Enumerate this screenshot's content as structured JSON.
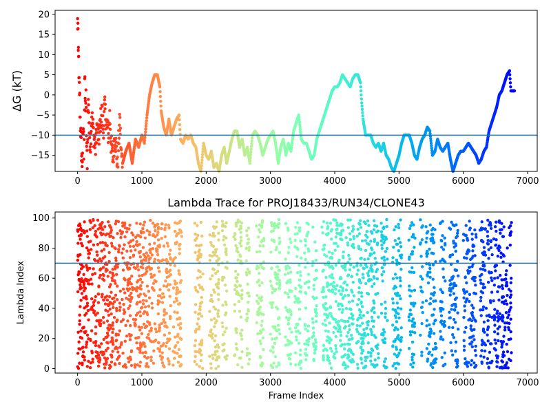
{
  "chart_data": [
    {
      "type": "scatter",
      "title": "",
      "xlabel": "",
      "ylabel": "ΔG (kT)",
      "xlim": [
        -350,
        7150
      ],
      "ylim": [
        -19,
        21
      ],
      "xticks": [
        0,
        1000,
        2000,
        3000,
        4000,
        5000,
        6000,
        7000
      ],
      "yticks": [
        -15,
        -10,
        -5,
        0,
        5,
        10,
        15,
        20
      ],
      "hline": -10,
      "hline_color": "#1f77b4",
      "colormap": "rainbow",
      "color_encoding": "frame index (early frames red, late frames violet)",
      "trace": [
        [
          0,
          18
        ],
        [
          5,
          17
        ],
        [
          10,
          10
        ],
        [
          15,
          11.5
        ],
        [
          20,
          3
        ],
        [
          30,
          1
        ],
        [
          40,
          -6
        ],
        [
          50,
          -10
        ],
        [
          60,
          -14
        ],
        [
          70,
          -17
        ],
        [
          80,
          -12
        ],
        [
          90,
          -8
        ],
        [
          100,
          -17
        ],
        [
          110,
          4
        ],
        [
          120,
          -3
        ],
        [
          130,
          -1
        ],
        [
          140,
          -13
        ],
        [
          150,
          -16
        ],
        [
          160,
          -5
        ],
        [
          170,
          -1
        ],
        [
          180,
          -9
        ],
        [
          200,
          -12
        ],
        [
          220,
          -5
        ],
        [
          250,
          -10
        ],
        [
          280,
          -13
        ],
        [
          300,
          -8
        ],
        [
          330,
          -11
        ],
        [
          360,
          -6
        ],
        [
          380,
          -4
        ],
        [
          400,
          -9
        ],
        [
          420,
          -3
        ],
        [
          450,
          -7
        ],
        [
          480,
          -10
        ],
        [
          500,
          -5
        ],
        [
          520,
          -12
        ],
        [
          550,
          -16
        ],
        [
          580,
          -10
        ],
        [
          600,
          -13
        ],
        [
          620,
          -18
        ],
        [
          650,
          -8
        ],
        [
          660,
          -7
        ],
        [
          680,
          -15
        ],
        [
          700,
          -17
        ],
        [
          750,
          -14
        ],
        [
          800,
          -12
        ],
        [
          850,
          -17
        ],
        [
          900,
          -11
        ],
        [
          950,
          -13
        ],
        [
          1000,
          -10
        ],
        [
          1040,
          -12
        ],
        [
          1080,
          -5
        ],
        [
          1120,
          0
        ],
        [
          1160,
          3
        ],
        [
          1200,
          5
        ],
        [
          1240,
          5
        ],
        [
          1280,
          2
        ],
        [
          1300,
          -4
        ],
        [
          1340,
          -8
        ],
        [
          1380,
          -10
        ],
        [
          1420,
          -6
        ],
        [
          1460,
          -10
        ],
        [
          1500,
          -8
        ],
        [
          1540,
          -6
        ],
        [
          1580,
          -5
        ],
        [
          1600,
          -11
        ],
        [
          1640,
          -12
        ],
        [
          1680,
          -10
        ],
        [
          1720,
          -11
        ],
        [
          1760,
          -10
        ],
        [
          1800,
          -12
        ],
        [
          1840,
          -13
        ],
        [
          1880,
          -17
        ],
        [
          1920,
          -19
        ],
        [
          1960,
          -12
        ],
        [
          2000,
          -15
        ],
        [
          2040,
          -16
        ],
        [
          2080,
          -14
        ],
        [
          2120,
          -18
        ],
        [
          2160,
          -17
        ],
        [
          2200,
          -19
        ],
        [
          2240,
          -15
        ],
        [
          2280,
          -13
        ],
        [
          2320,
          -17
        ],
        [
          2360,
          -14
        ],
        [
          2400,
          -11
        ],
        [
          2440,
          -9
        ],
        [
          2480,
          -9
        ],
        [
          2520,
          -13
        ],
        [
          2560,
          -11
        ],
        [
          2600,
          -15
        ],
        [
          2640,
          -13
        ],
        [
          2680,
          -17
        ],
        [
          2720,
          -10
        ],
        [
          2760,
          -9
        ],
        [
          2800,
          -10
        ],
        [
          2840,
          -12
        ],
        [
          2880,
          -15
        ],
        [
          2920,
          -13
        ],
        [
          2960,
          -11
        ],
        [
          3000,
          -10
        ],
        [
          3040,
          -9
        ],
        [
          3080,
          -12
        ],
        [
          3120,
          -17
        ],
        [
          3160,
          -13
        ],
        [
          3200,
          -11
        ],
        [
          3240,
          -15
        ],
        [
          3280,
          -12
        ],
        [
          3320,
          -14
        ],
        [
          3360,
          -9
        ],
        [
          3400,
          -7
        ],
        [
          3440,
          -5
        ],
        [
          3480,
          -11
        ],
        [
          3520,
          -12
        ],
        [
          3560,
          -12
        ],
        [
          3600,
          -14
        ],
        [
          3640,
          -16
        ],
        [
          3680,
          -15
        ],
        [
          3720,
          -11
        ],
        [
          3760,
          -9
        ],
        [
          3800,
          -7
        ],
        [
          3840,
          -5
        ],
        [
          3880,
          -3
        ],
        [
          3920,
          -1
        ],
        [
          3960,
          1
        ],
        [
          4000,
          2
        ],
        [
          4040,
          2
        ],
        [
          4080,
          3
        ],
        [
          4120,
          5
        ],
        [
          4160,
          4
        ],
        [
          4200,
          3
        ],
        [
          4240,
          2
        ],
        [
          4280,
          4
        ],
        [
          4320,
          5
        ],
        [
          4360,
          5
        ],
        [
          4400,
          3
        ],
        [
          4420,
          -2
        ],
        [
          4440,
          -6
        ],
        [
          4480,
          -10
        ],
        [
          4520,
          -10
        ],
        [
          4560,
          -10
        ],
        [
          4600,
          -12
        ],
        [
          4640,
          -13
        ],
        [
          4680,
          -12
        ],
        [
          4720,
          -14
        ],
        [
          4760,
          -12
        ],
        [
          4800,
          -15
        ],
        [
          4840,
          -16
        ],
        [
          4880,
          -18
        ],
        [
          4920,
          -19
        ],
        [
          4960,
          -17
        ],
        [
          5000,
          -15
        ],
        [
          5040,
          -12
        ],
        [
          5080,
          -10
        ],
        [
          5120,
          -10
        ],
        [
          5160,
          -10
        ],
        [
          5200,
          -12
        ],
        [
          5240,
          -15
        ],
        [
          5280,
          -16
        ],
        [
          5320,
          -13
        ],
        [
          5360,
          -11
        ],
        [
          5400,
          -10
        ],
        [
          5440,
          -8
        ],
        [
          5480,
          -9
        ],
        [
          5520,
          -15
        ],
        [
          5560,
          -14
        ],
        [
          5600,
          -11
        ],
        [
          5640,
          -13
        ],
        [
          5680,
          -14
        ],
        [
          5720,
          -13
        ],
        [
          5760,
          -12
        ],
        [
          5800,
          -16
        ],
        [
          5840,
          -19
        ],
        [
          5880,
          -17
        ],
        [
          5920,
          -15
        ],
        [
          5960,
          -14
        ],
        [
          6000,
          -14
        ],
        [
          6040,
          -13
        ],
        [
          6080,
          -12
        ],
        [
          6120,
          -13
        ],
        [
          6160,
          -14
        ],
        [
          6200,
          -15
        ],
        [
          6240,
          -17
        ],
        [
          6280,
          -16
        ],
        [
          6320,
          -14
        ],
        [
          6360,
          -13
        ],
        [
          6400,
          -9
        ],
        [
          6440,
          -7
        ],
        [
          6480,
          -5
        ],
        [
          6520,
          -3
        ],
        [
          6560,
          0
        ],
        [
          6600,
          1
        ],
        [
          6640,
          3
        ],
        [
          6680,
          5
        ],
        [
          6720,
          6
        ],
        [
          6740,
          1
        ],
        [
          6800,
          1
        ]
      ]
    },
    {
      "type": "scatter",
      "title": "Lambda Trace for PROJ18433/RUN34/CLONE43",
      "xlabel": "Frame Index",
      "ylabel": "Lambda Index",
      "xlim": [
        -350,
        7150
      ],
      "ylim": [
        -3,
        104
      ],
      "xticks": [
        0,
        1000,
        2000,
        3000,
        4000,
        5000,
        6000,
        7000
      ],
      "yticks": [
        0,
        20,
        40,
        60,
        80,
        100
      ],
      "hline": 70,
      "hline_color": "#1f77b4",
      "colormap": "rainbow",
      "color_encoding": "frame index (early frames red, late frames violet)",
      "x_range": [
        0,
        6800
      ],
      "y_range": [
        0,
        99
      ],
      "dense_bands": [
        [
          0,
          1250
        ],
        [
          1250,
          1450
        ],
        [
          1480,
          1620
        ],
        [
          1820,
          1950
        ],
        [
          2050,
          2200
        ],
        [
          2250,
          2330
        ],
        [
          2430,
          2560
        ],
        [
          2620,
          2680
        ],
        [
          2780,
          2900
        ],
        [
          3000,
          3150
        ],
        [
          3230,
          3330
        ],
        [
          3380,
          3480
        ],
        [
          3530,
          3600
        ],
        [
          3650,
          3720
        ],
        [
          3800,
          4300
        ],
        [
          4340,
          4680
        ],
        [
          4720,
          4820
        ],
        [
          4900,
          5050
        ],
        [
          5150,
          5250
        ],
        [
          5330,
          5370
        ],
        [
          5420,
          5580
        ],
        [
          5640,
          5720
        ],
        [
          5780,
          5920
        ],
        [
          6000,
          6200
        ],
        [
          6260,
          6450
        ],
        [
          6470,
          6750
        ]
      ]
    }
  ]
}
